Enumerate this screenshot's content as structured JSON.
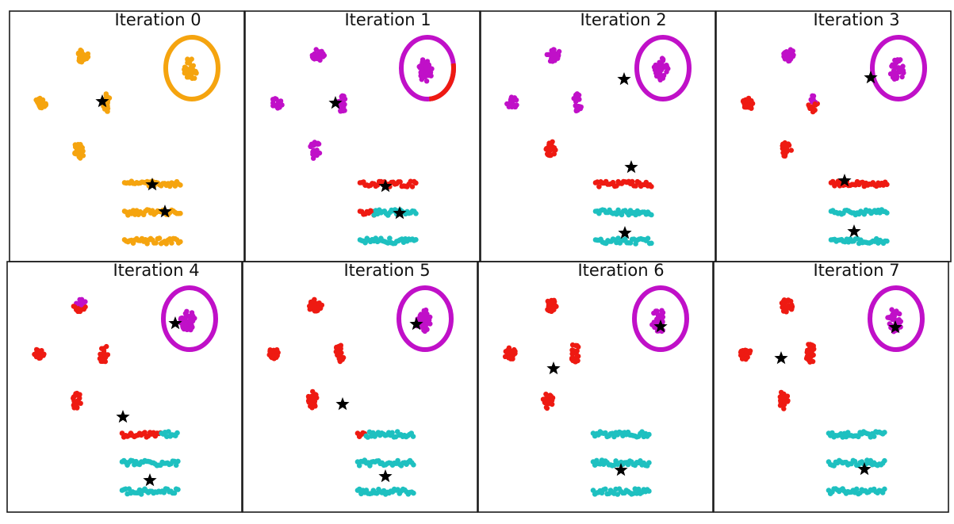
{
  "colors": {
    "orange": "#f5a40f",
    "magenta": "#c010c8",
    "red": "#ee1a12",
    "cyan": "#1ec0c0",
    "centroid": "#000000"
  },
  "panels": [
    {
      "title": "Iteration 0",
      "groups": {
        "cluster_top_left": "orange",
        "cluster_upper_left": "orange",
        "cluster_mid_left": "orange",
        "cluster_center": "orange",
        "cluster_lower_left": "orange",
        "circle": "orange",
        "ring": "orange"
      },
      "centroids": [
        [
          1,
          1
        ],
        [
          1,
          1
        ]
      ],
      "stripe_parts": [
        [
          [
            "orange",
            1
          ]
        ],
        [
          [
            "orange",
            1
          ]
        ],
        [
          [
            "orange",
            1
          ]
        ]
      ]
    },
    {
      "title": "Iteration 1",
      "groups": {
        "cluster_top_left": "magenta",
        "cluster_upper_left": "magenta",
        "cluster_mid_left": "magenta",
        "cluster_center": "magenta",
        "cluster_lower_left": "magenta",
        "circle": "magenta",
        "ring": "magenta"
      },
      "ring_arc_red": true,
      "stripe_parts": [
        [
          [
            "red",
            1
          ]
        ],
        [
          [
            "red",
            0.25
          ],
          [
            "cyan",
            0.75
          ]
        ],
        [
          [
            "cyan",
            1
          ]
        ]
      ]
    },
    {
      "title": "Iteration 2",
      "groups": {
        "cluster_top_left": "magenta",
        "cluster_upper_left": "magenta",
        "cluster_mid_left": "magenta",
        "cluster_center": "magenta",
        "cluster_lower_left": "red",
        "circle": "magenta",
        "ring": "magenta"
      },
      "stripe_parts": [
        [
          [
            "red",
            1
          ]
        ],
        [
          [
            "cyan",
            1
          ]
        ],
        [
          [
            "cyan",
            1
          ]
        ]
      ]
    },
    {
      "title": "Iteration 3",
      "groups": {
        "cluster_top_left": "magenta",
        "cluster_upper_left": "red",
        "cluster_mid_left": "red",
        "cluster_center": "red_magenta",
        "cluster_lower_left": "red",
        "circle": "magenta",
        "ring": "magenta"
      },
      "stripe_parts": [
        [
          [
            "red",
            1
          ]
        ],
        [
          [
            "cyan",
            1
          ]
        ],
        [
          [
            "cyan",
            1
          ]
        ]
      ]
    },
    {
      "title": "Iteration 4",
      "groups": {
        "cluster_top_left": "red_magenta",
        "cluster_upper_left": "red",
        "cluster_mid_left": "red",
        "cluster_center": "red",
        "cluster_lower_left": "red",
        "circle": "magenta",
        "ring": "magenta"
      },
      "stripe_parts": [
        [
          [
            "red",
            0.7
          ],
          [
            "cyan",
            0.3
          ]
        ],
        [
          [
            "cyan",
            1
          ]
        ],
        [
          [
            "cyan",
            1
          ]
        ]
      ]
    },
    {
      "title": "Iteration 5",
      "groups": {
        "cluster_top_left": "red",
        "cluster_upper_left": "red",
        "cluster_mid_left": "red",
        "cluster_center": "red",
        "cluster_lower_left": "red",
        "circle": "magenta",
        "ring": "magenta"
      },
      "stripe_parts": [
        [
          [
            "red",
            0.15
          ],
          [
            "cyan",
            0.85
          ]
        ],
        [
          [
            "cyan",
            1
          ]
        ],
        [
          [
            "cyan",
            1
          ]
        ]
      ]
    },
    {
      "title": "Iteration 6",
      "groups": {
        "cluster_top_left": "red",
        "cluster_upper_left": "red",
        "cluster_mid_left": "red",
        "cluster_center": "red",
        "cluster_lower_left": "red",
        "circle": "magenta",
        "ring": "magenta"
      },
      "stripe_parts": [
        [
          [
            "cyan",
            1
          ]
        ],
        [
          [
            "cyan",
            1
          ]
        ],
        [
          [
            "cyan",
            1
          ]
        ]
      ]
    },
    {
      "title": "Iteration 7",
      "groups": {
        "cluster_top_left": "red",
        "cluster_upper_left": "red",
        "cluster_mid_left": "red",
        "cluster_center": "red",
        "cluster_lower_left": "red",
        "circle": "magenta",
        "ring": "magenta"
      },
      "stripe_parts": [
        [
          [
            "cyan",
            1
          ]
        ],
        [
          [
            "cyan",
            1
          ]
        ],
        [
          [
            "cyan",
            1
          ]
        ]
      ]
    }
  ]
}
